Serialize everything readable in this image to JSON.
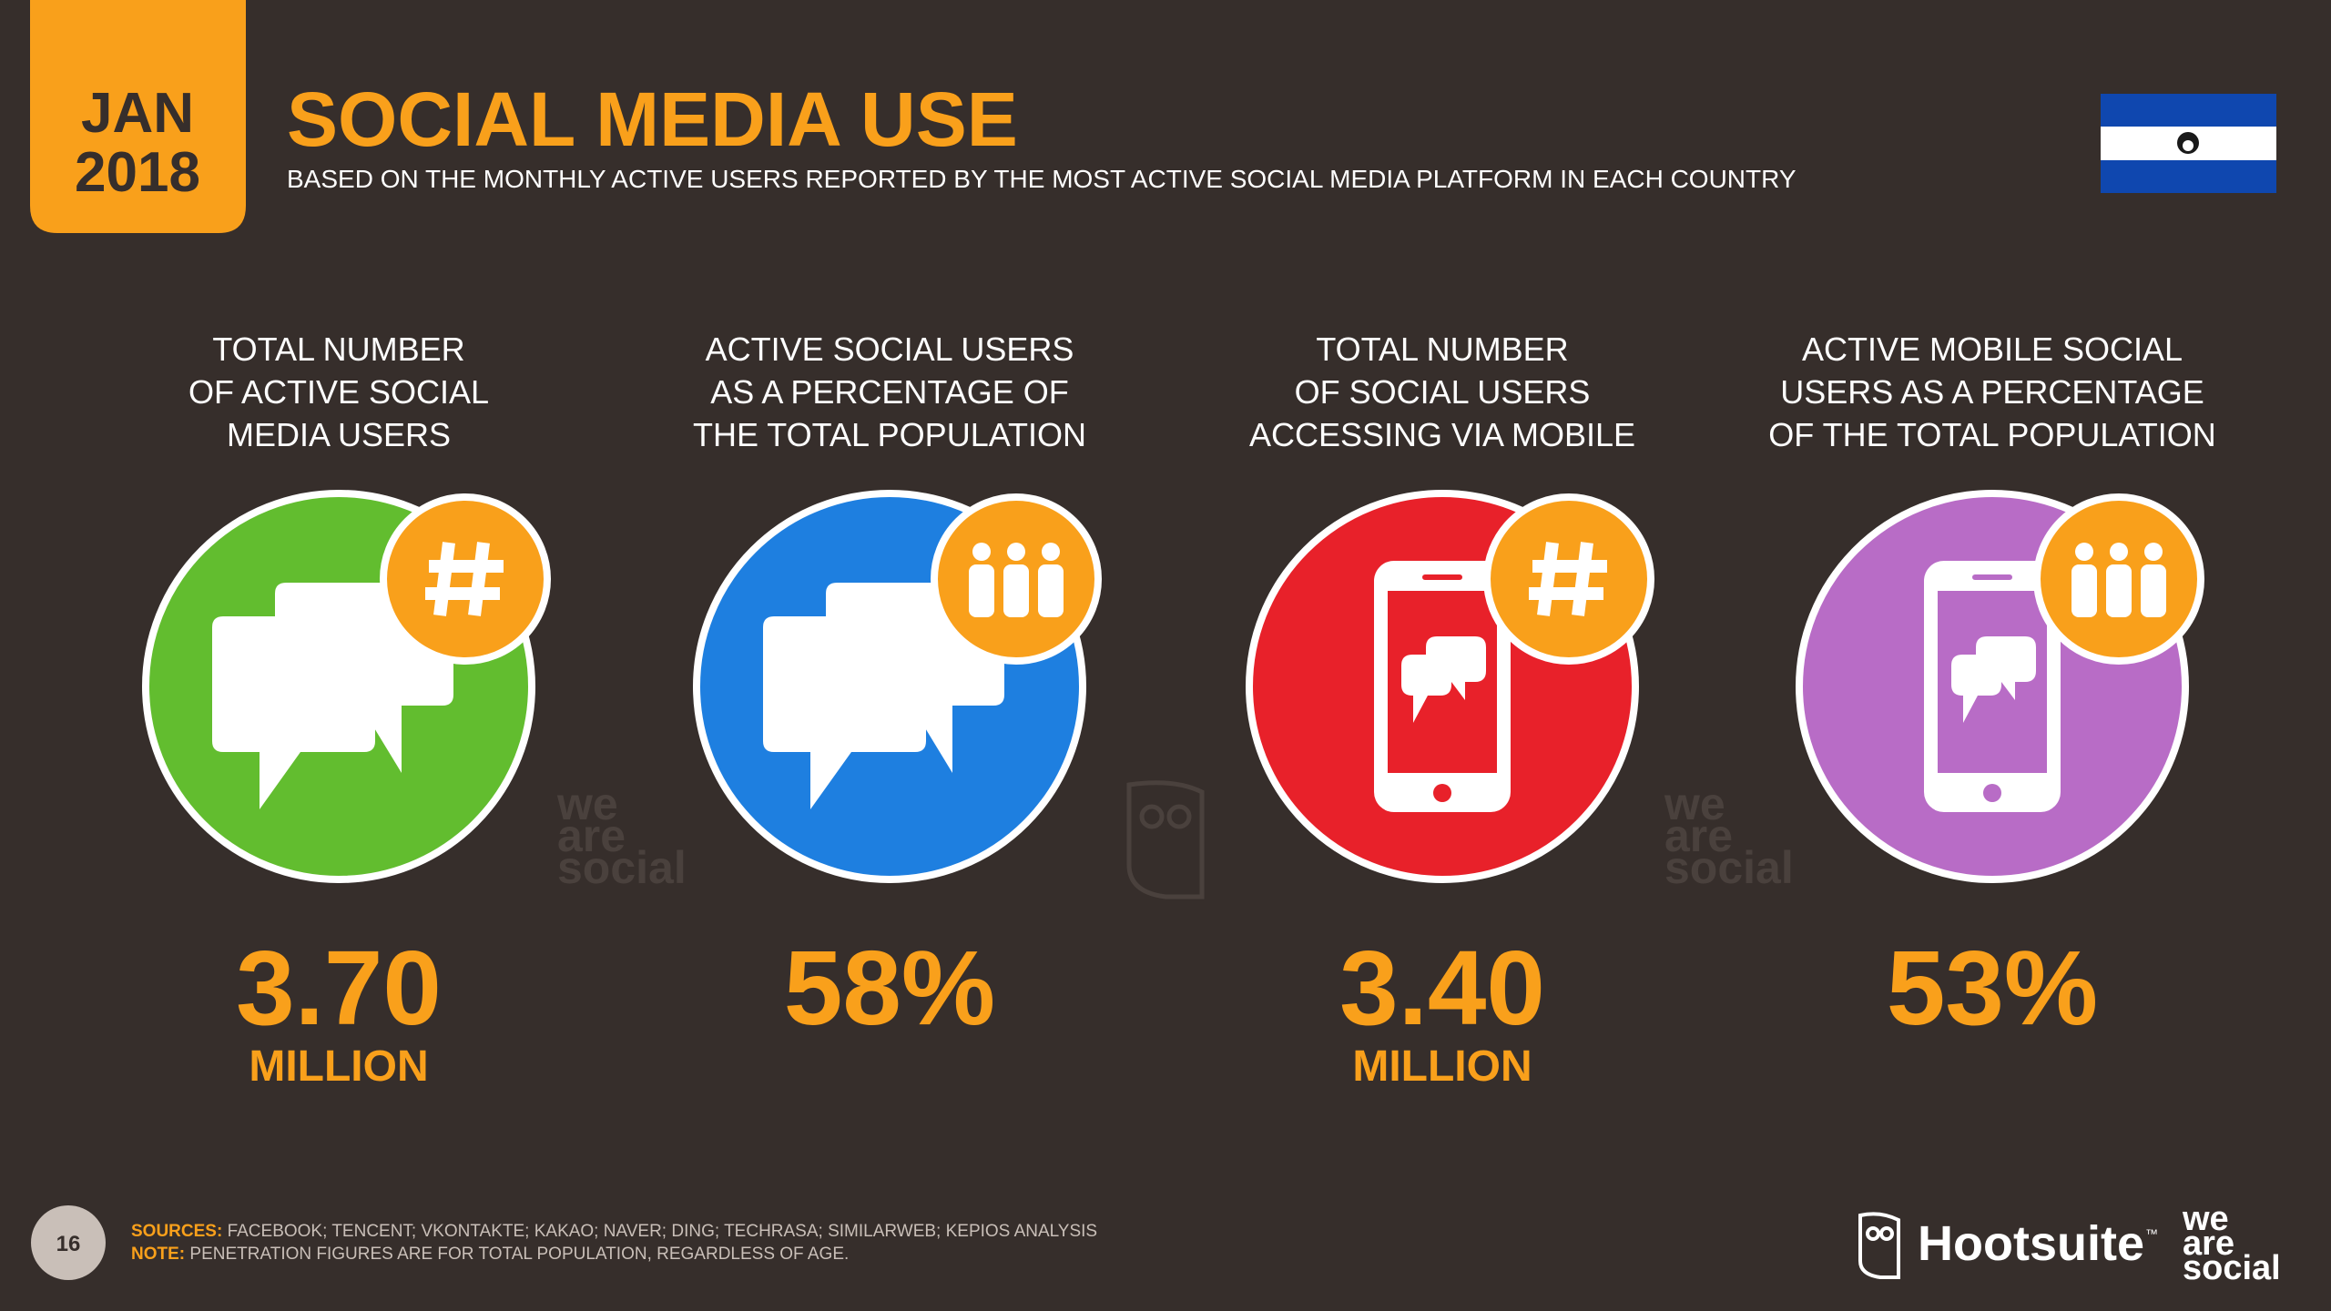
{
  "header": {
    "date_month": "JAN",
    "date_year": "2018",
    "title": "SOCIAL MEDIA USE",
    "subtitle": "BASED ON THE MONTHLY ACTIVE USERS REPORTED BY THE MOST ACTIVE SOCIAL MEDIA PLATFORM IN EACH COUNTRY"
  },
  "stats": [
    {
      "label_lines": [
        "TOTAL NUMBER",
        "OF ACTIVE SOCIAL",
        "MEDIA USERS"
      ],
      "value": "3.70",
      "unit": "MILLION",
      "color": "#62bd2f"
    },
    {
      "label_lines": [
        "ACTIVE SOCIAL USERS",
        "AS A PERCENTAGE OF",
        "THE TOTAL POPULATION"
      ],
      "value": "58%",
      "color": "#1e7fe0"
    },
    {
      "label_lines": [
        "TOTAL NUMBER",
        "OF SOCIAL USERS",
        "ACCESSING VIA MOBILE"
      ],
      "value": "3.40",
      "unit": "MILLION",
      "color": "#e8212a"
    },
    {
      "label_lines": [
        "ACTIVE MOBILE SOCIAL",
        "USERS AS A PERCENTAGE",
        "OF THE TOTAL POPULATION"
      ],
      "value": "53%",
      "color": "#b86cc6"
    }
  ],
  "watermark": [
    "we",
    "are",
    "social"
  ],
  "footer": {
    "page_number": "16",
    "sources_label": "SOURCES:",
    "sources_text": "FACEBOOK; TENCENT; VKONTAKTE; KAKAO; NAVER; DING; TECHRASA; SIMILARWEB; KEPIOS ANALYSIS",
    "note_label": "NOTE:",
    "note_text": "PENETRATION FIGURES ARE FOR TOTAL POPULATION, REGARDLESS OF AGE.",
    "hootsuite": "Hootsuite",
    "trademark": "™",
    "logo_lines": [
      "we",
      "are",
      "social"
    ]
  }
}
